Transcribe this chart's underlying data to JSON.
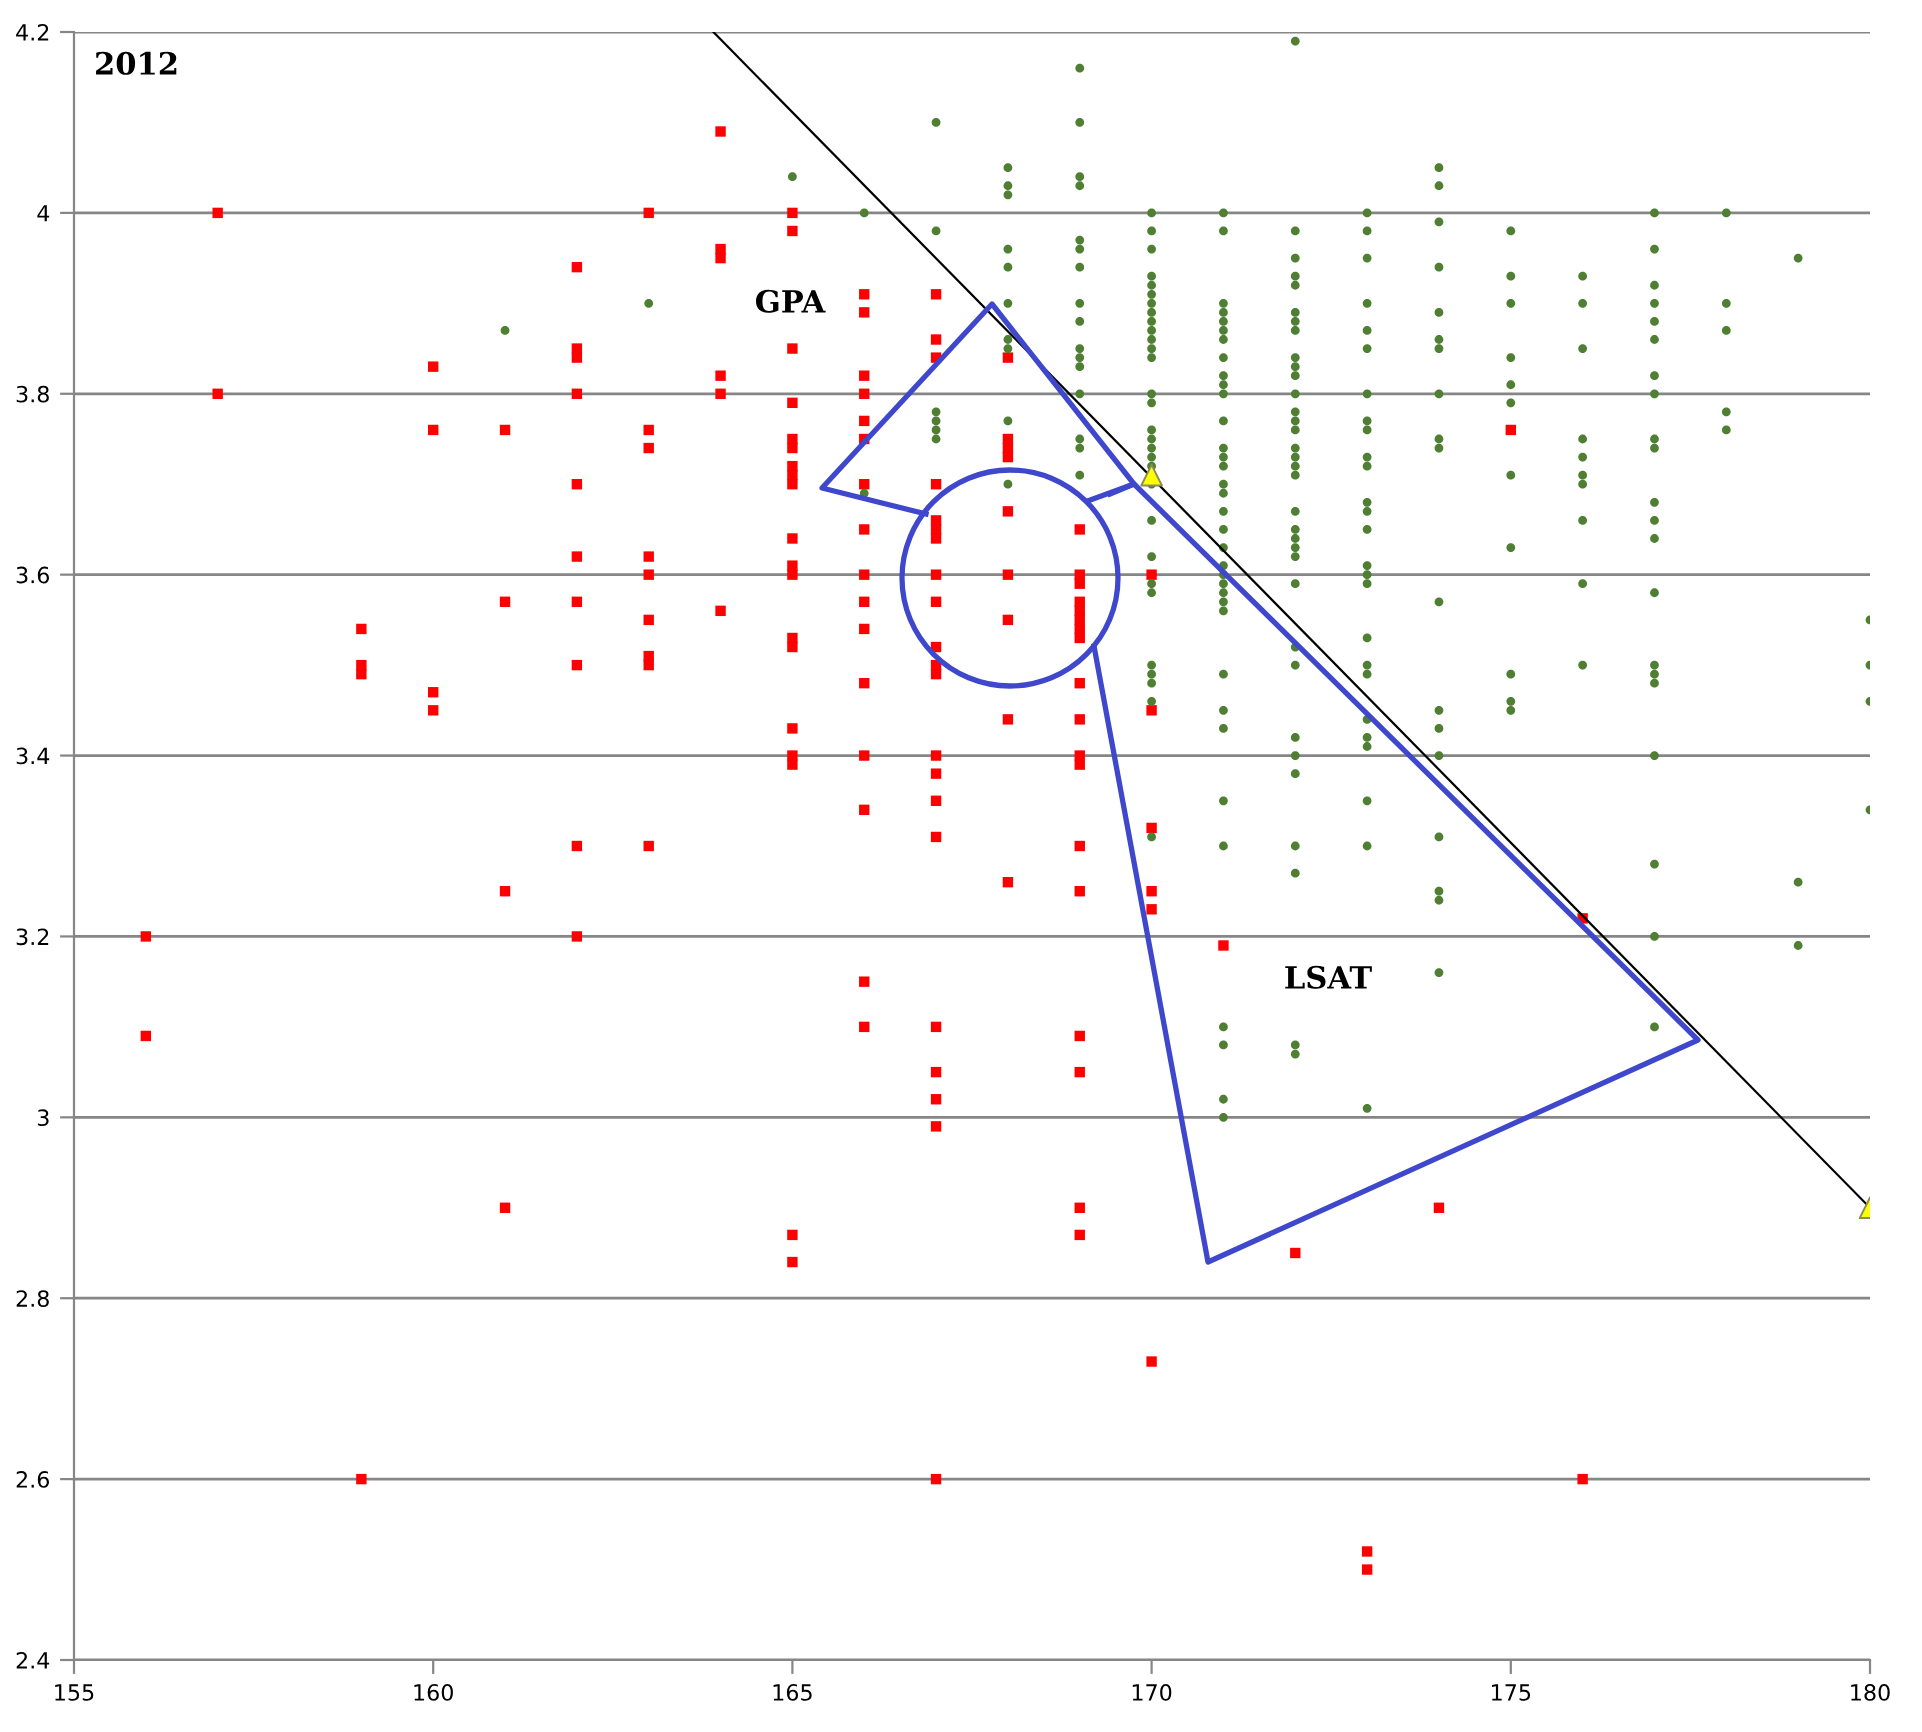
{
  "chart_data": {
    "type": "scatter",
    "title": "2012",
    "annotations": [
      "GPA",
      "LSAT"
    ],
    "xlim": [
      155,
      180
    ],
    "xticks": [
      155,
      160,
      165,
      170,
      175,
      180
    ],
    "ylim": [
      2.4,
      4.2
    ],
    "yticks": [
      2.4,
      2.6,
      2.8,
      3,
      3.2,
      3.4,
      3.6,
      3.8,
      4,
      4.2
    ],
    "grid": "y",
    "series": [
      {
        "type": "scatter",
        "color": "#ff0000",
        "marker": "square",
        "x": [
          156,
          156,
          157,
          157,
          159,
          159,
          159,
          159,
          160,
          160,
          160,
          160,
          161,
          161,
          161,
          161,
          162,
          162,
          162,
          162,
          162,
          162,
          162,
          162,
          162,
          162,
          163,
          163,
          163,
          163,
          163,
          163,
          163,
          163,
          163,
          164,
          164,
          164,
          164,
          164,
          164,
          165,
          165,
          165,
          165,
          165,
          165,
          165,
          165,
          165,
          165,
          165,
          165,
          165,
          165,
          165,
          165,
          165,
          165,
          165,
          166,
          166,
          166,
          166,
          166,
          166,
          166,
          166,
          166,
          166,
          166,
          166,
          166,
          166,
          166,
          166,
          167,
          167,
          167,
          167,
          167,
          167,
          167,
          167,
          167,
          167,
          167,
          167,
          167,
          167,
          167,
          167,
          167,
          167,
          167,
          167,
          167,
          168,
          168,
          168,
          168,
          168,
          168,
          168,
          168,
          168,
          169,
          169,
          169,
          169,
          169,
          169,
          169,
          169,
          169,
          169,
          169,
          169,
          169,
          169,
          169,
          169,
          169,
          169,
          170,
          170,
          170,
          170,
          170,
          170,
          171,
          172,
          173,
          173,
          174,
          175,
          176,
          176
        ],
        "values": [
          3.2,
          3.09,
          4,
          3.8,
          3.54,
          3.5,
          3.49,
          2.6,
          3.83,
          3.76,
          3.47,
          3.45,
          3.76,
          3.57,
          3.25,
          2.9,
          3.94,
          3.85,
          3.84,
          3.8,
          3.7,
          3.62,
          3.57,
          3.5,
          3.3,
          3.2,
          4,
          3.76,
          3.74,
          3.62,
          3.6,
          3.55,
          3.51,
          3.5,
          3.3,
          4.09,
          3.96,
          3.95,
          3.82,
          3.8,
          3.56,
          4,
          3.98,
          3.85,
          3.79,
          3.75,
          3.74,
          3.72,
          3.71,
          3.7,
          3.64,
          3.61,
          3.6,
          3.53,
          3.52,
          3.43,
          3.4,
          3.39,
          2.87,
          2.84,
          3.91,
          3.89,
          3.82,
          3.8,
          3.77,
          3.75,
          3.7,
          3.65,
          3.6,
          3.57,
          3.54,
          3.48,
          3.4,
          3.34,
          3.15,
          3.1,
          3.91,
          3.86,
          3.84,
          3.7,
          3.66,
          3.65,
          3.64,
          3.6,
          3.57,
          3.52,
          3.5,
          3.49,
          3.4,
          3.38,
          3.35,
          3.31,
          3.1,
          3.05,
          3.02,
          2.99,
          2.6,
          3.84,
          3.75,
          3.74,
          3.73,
          3.67,
          3.6,
          3.55,
          3.44,
          3.26,
          3.65,
          3.6,
          3.59,
          3.57,
          3.56,
          3.55,
          3.54,
          3.53,
          3.48,
          3.44,
          3.4,
          3.39,
          3.3,
          3.25,
          3.09,
          3.05,
          2.9,
          2.87,
          3.6,
          3.45,
          3.32,
          3.25,
          3.23,
          2.73,
          3.19,
          2.85,
          2.52,
          2.5,
          2.9,
          3.76,
          3.22,
          2.6
        ]
      },
      {
        "type": "scatter",
        "color": "#4f7f32",
        "marker": "circle",
        "x": [
          161,
          163,
          165,
          166,
          166,
          167,
          167,
          167,
          167,
          167,
          167,
          168,
          168,
          168,
          168,
          168,
          168,
          168,
          168,
          168,
          168,
          169,
          169,
          169,
          169,
          169,
          169,
          169,
          169,
          169,
          169,
          169,
          169,
          169,
          169,
          169,
          169,
          170,
          170,
          170,
          170,
          170,
          170,
          170,
          170,
          170,
          170,
          170,
          170,
          170,
          170,
          170,
          170,
          170,
          170,
          170,
          170,
          170,
          170,
          170,
          170,
          170,
          170,
          170,
          170,
          170,
          170,
          171,
          171,
          171,
          171,
          171,
          171,
          171,
          171,
          171,
          171,
          171,
          171,
          171,
          171,
          171,
          171,
          171,
          171,
          171,
          171,
          171,
          171,
          171,
          171,
          171,
          171,
          171,
          171,
          171,
          171,
          171,
          171,
          171,
          171,
          171,
          172,
          172,
          172,
          172,
          172,
          172,
          172,
          172,
          172,
          172,
          172,
          172,
          172,
          172,
          172,
          172,
          172,
          172,
          172,
          172,
          172,
          172,
          172,
          172,
          172,
          172,
          172,
          172,
          172,
          172,
          172,
          172,
          172,
          172,
          173,
          173,
          173,
          173,
          173,
          173,
          173,
          173,
          173,
          173,
          173,
          173,
          173,
          173,
          173,
          173,
          173,
          173,
          173,
          173,
          173,
          173,
          173,
          173,
          173,
          173,
          174,
          174,
          174,
          174,
          174,
          174,
          174,
          174,
          174,
          174,
          174,
          174,
          174,
          174,
          174,
          174,
          174,
          174,
          175,
          175,
          175,
          175,
          175,
          175,
          175,
          175,
          175,
          175,
          175,
          176,
          176,
          176,
          176,
          176,
          176,
          176,
          176,
          176,
          176,
          177,
          177,
          177,
          177,
          177,
          177,
          177,
          177,
          177,
          177,
          177,
          177,
          177,
          177,
          177,
          177,
          177,
          177,
          177,
          177,
          177,
          178,
          178,
          178,
          178,
          178,
          179,
          179,
          179,
          180,
          180,
          180,
          180
        ],
        "values": [
          3.87,
          3.9,
          4.04,
          4,
          3.69,
          4.1,
          3.98,
          3.78,
          3.77,
          3.76,
          3.75,
          4.05,
          4.03,
          4.02,
          3.96,
          3.94,
          3.9,
          3.86,
          3.85,
          3.77,
          3.7,
          4.16,
          4.1,
          4.04,
          4.03,
          3.97,
          3.96,
          3.94,
          3.9,
          3.88,
          3.85,
          3.84,
          3.83,
          3.8,
          3.75,
          3.74,
          3.71,
          4,
          3.98,
          3.96,
          3.93,
          3.92,
          3.91,
          3.9,
          3.89,
          3.88,
          3.87,
          3.86,
          3.85,
          3.84,
          3.8,
          3.79,
          3.76,
          3.75,
          3.74,
          3.73,
          3.72,
          3.7,
          3.66,
          3.62,
          3.59,
          3.58,
          3.5,
          3.49,
          3.48,
          3.46,
          3.31,
          4,
          3.98,
          3.9,
          3.89,
          3.88,
          3.87,
          3.86,
          3.84,
          3.82,
          3.81,
          3.8,
          3.77,
          3.74,
          3.73,
          3.72,
          3.7,
          3.69,
          3.67,
          3.65,
          3.63,
          3.61,
          3.6,
          3.59,
          3.58,
          3.57,
          3.56,
          3.49,
          3.45,
          3.43,
          3.35,
          3.3,
          3.1,
          3.08,
          3.02,
          3,
          4.19,
          3.98,
          3.95,
          3.93,
          3.92,
          3.89,
          3.88,
          3.87,
          3.84,
          3.83,
          3.82,
          3.8,
          3.78,
          3.77,
          3.76,
          3.74,
          3.73,
          3.72,
          3.71,
          3.67,
          3.65,
          3.64,
          3.63,
          3.62,
          3.59,
          3.52,
          3.5,
          3.42,
          3.4,
          3.38,
          3.3,
          3.27,
          3.08,
          3.07,
          4,
          3.98,
          3.95,
          3.9,
          3.87,
          3.85,
          3.8,
          3.77,
          3.76,
          3.73,
          3.72,
          3.68,
          3.67,
          3.65,
          3.61,
          3.6,
          3.59,
          3.53,
          3.5,
          3.49,
          3.44,
          3.42,
          3.41,
          3.35,
          3.3,
          3.01,
          4.05,
          4.03,
          3.99,
          3.94,
          3.89,
          3.86,
          3.85,
          3.8,
          3.75,
          3.74,
          3.57,
          3.45,
          3.43,
          3.4,
          3.31,
          3.25,
          3.24,
          3.16,
          3.98,
          3.93,
          3.9,
          3.84,
          3.81,
          3.79,
          3.71,
          3.63,
          3.49,
          3.46,
          3.45,
          3.93,
          3.9,
          3.85,
          3.75,
          3.73,
          3.71,
          3.7,
          3.66,
          3.59,
          3.5,
          4,
          3.96,
          3.92,
          3.9,
          3.88,
          3.86,
          3.82,
          3.8,
          3.75,
          3.74,
          3.68,
          3.66,
          3.64,
          3.58,
          3.5,
          3.49,
          3.48,
          3.4,
          3.28,
          3.2,
          3.1,
          4,
          3.9,
          3.87,
          3.78,
          3.76,
          3.95,
          3.26,
          3.19,
          3.55,
          3.5,
          3.46,
          3.34
        ]
      },
      {
        "type": "line",
        "color": "#000000",
        "line_style": "solid",
        "x": [
          163.9,
          180
        ],
        "values": [
          4.2,
          2.9
        ]
      },
      {
        "type": "scatter",
        "color": "#ffff00",
        "marker": "triangle",
        "x": [
          170,
          180
        ],
        "values": [
          3.71,
          2.9
        ]
      }
    ]
  }
}
